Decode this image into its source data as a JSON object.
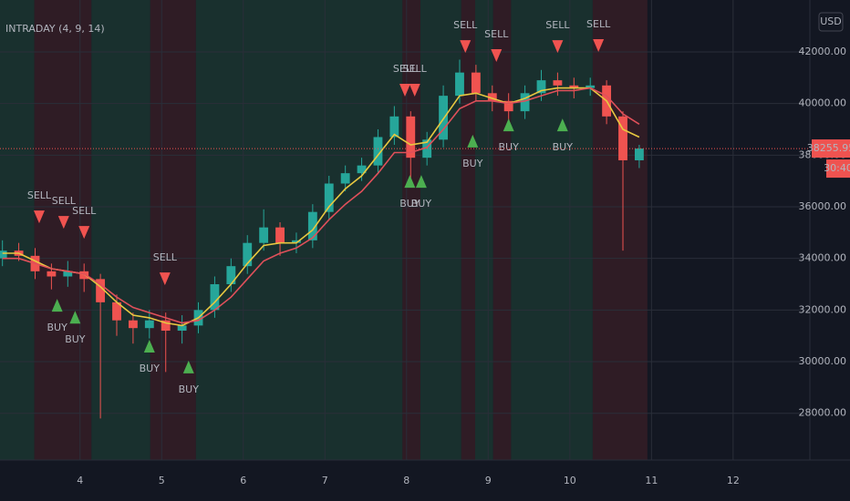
{
  "chart_data": {
    "type": "candlestick",
    "title": "INTRADAY (4, 9, 14)",
    "currency": "USD",
    "x": [
      3.05,
      3.25,
      3.45,
      3.65,
      3.85,
      4.05,
      4.25,
      4.45,
      4.65,
      4.85,
      5.05,
      5.25,
      5.45,
      5.65,
      5.85,
      6.05,
      6.25,
      6.45,
      6.65,
      6.85,
      7.05,
      7.25,
      7.45,
      7.65,
      7.85,
      8.05,
      8.25,
      8.45,
      8.65,
      8.85,
      9.05,
      9.25,
      9.45,
      9.65,
      9.85,
      10.05,
      10.25,
      10.45,
      10.65,
      10.85
    ],
    "open": [
      34000,
      34300,
      34100,
      33500,
      33300,
      33500,
      33200,
      32300,
      31600,
      31300,
      31600,
      31200,
      31400,
      32000,
      33000,
      33700,
      34600,
      35200,
      34600,
      34700,
      35800,
      36900,
      37300,
      37600,
      38700,
      39500,
      37900,
      38600,
      40300,
      41200,
      40400,
      40100,
      39700,
      40400,
      40900,
      40700,
      40600,
      40700,
      39500,
      37800
    ],
    "high": [
      34700,
      34600,
      34400,
      33800,
      33900,
      33800,
      33400,
      32600,
      31900,
      32000,
      31900,
      31800,
      32300,
      33300,
      34000,
      34900,
      35900,
      35400,
      35000,
      36100,
      37200,
      37600,
      37900,
      39000,
      39900,
      39700,
      38900,
      40700,
      41700,
      41500,
      40700,
      40400,
      40700,
      41300,
      41200,
      41000,
      41000,
      40900,
      39700,
      38400
    ],
    "low": [
      33700,
      33900,
      33200,
      32800,
      32900,
      32700,
      27800,
      31000,
      30700,
      30900,
      29600,
      30700,
      31100,
      31700,
      32700,
      33400,
      34300,
      34100,
      34200,
      34400,
      35500,
      36600,
      37000,
      37300,
      38400,
      36800,
      37600,
      38300,
      40000,
      40100,
      39700,
      39200,
      39400,
      40100,
      40300,
      40200,
      40300,
      39200,
      34300,
      37500
    ],
    "close": [
      34300,
      34100,
      33500,
      33300,
      33500,
      33200,
      32300,
      31600,
      31300,
      31600,
      31200,
      31400,
      32000,
      33000,
      33700,
      34600,
      35200,
      34600,
      34700,
      35800,
      36900,
      37300,
      37600,
      38700,
      39500,
      37900,
      38600,
      40300,
      41200,
      40400,
      40100,
      39700,
      40400,
      40900,
      40700,
      40600,
      40700,
      39500,
      37800,
      38255.95
    ],
    "up_color": "#26a69a",
    "down_color": "#ef5350",
    "lines": [
      {
        "color": "#e8c840",
        "values": [
          34200,
          34200,
          33900,
          33600,
          33500,
          33400,
          32900,
          32300,
          31800,
          31700,
          31500,
          31400,
          31700,
          32300,
          33000,
          33800,
          34500,
          34600,
          34600,
          35100,
          36000,
          36700,
          37200,
          38000,
          38800,
          38400,
          38500,
          39400,
          40300,
          40400,
          40200,
          40000,
          40200,
          40500,
          40600,
          40600,
          40600,
          40100,
          39000,
          38700
        ]
      },
      {
        "color": "#e0505a",
        "values": [
          34000,
          34000,
          33800,
          33600,
          33500,
          33400,
          33000,
          32500,
          32100,
          31900,
          31700,
          31500,
          31600,
          32000,
          32500,
          33200,
          33900,
          34200,
          34400,
          34800,
          35500,
          36100,
          36600,
          37300,
          38100,
          38100,
          38300,
          39000,
          39800,
          40100,
          40100,
          40000,
          40100,
          40300,
          40500,
          40500,
          40600,
          40300,
          39600,
          39200
        ]
      }
    ],
    "signals": [
      {
        "label": "SELL",
        "x": 3.5,
        "price": 35360
      },
      {
        "label": "SELL",
        "x": 3.8,
        "price": 35150
      },
      {
        "label": "SELL",
        "x": 4.05,
        "price": 34760
      },
      {
        "label": "SELL",
        "x": 5.04,
        "price": 32960
      },
      {
        "label": "SELL",
        "x": 7.98,
        "price": 40270
      },
      {
        "label": "SELL",
        "x": 8.1,
        "price": 40270
      },
      {
        "label": "SELL",
        "x": 8.72,
        "price": 41960
      },
      {
        "label": "SELL",
        "x": 9.1,
        "price": 41610
      },
      {
        "label": "SELL",
        "x": 9.85,
        "price": 41960
      },
      {
        "label": "SELL",
        "x": 10.35,
        "price": 42000
      },
      {
        "label": "BUY",
        "x": 3.72,
        "price": 32430
      },
      {
        "label": "BUY",
        "x": 3.94,
        "price": 31970
      },
      {
        "label": "BUY",
        "x": 4.85,
        "price": 30850
      },
      {
        "label": "BUY",
        "x": 5.33,
        "price": 30040
      },
      {
        "label": "BUY",
        "x": 8.04,
        "price": 37230
      },
      {
        "label": "BUY",
        "x": 8.18,
        "price": 37230
      },
      {
        "label": "BUY",
        "x": 8.81,
        "price": 38790
      },
      {
        "label": "BUY",
        "x": 9.25,
        "price": 39420
      },
      {
        "label": "BUY",
        "x": 9.91,
        "price": 39420
      }
    ],
    "sell_color": "#f05350",
    "buy_color": "#4caf50",
    "zones": [
      {
        "from": 3.02,
        "to": 3.44,
        "color": "#1c3a33"
      },
      {
        "from": 3.44,
        "to": 4.14,
        "color": "#3a1f27"
      },
      {
        "from": 4.14,
        "to": 4.86,
        "color": "#1c3a33"
      },
      {
        "from": 4.86,
        "to": 5.42,
        "color": "#3a1f27"
      },
      {
        "from": 5.42,
        "to": 7.95,
        "color": "#1c3a33"
      },
      {
        "from": 7.95,
        "to": 8.17,
        "color": "#3a1f27"
      },
      {
        "from": 8.17,
        "to": 8.67,
        "color": "#1c3a33"
      },
      {
        "from": 8.67,
        "to": 8.84,
        "color": "#3a1f27"
      },
      {
        "from": 8.84,
        "to": 9.06,
        "color": "#1c3a33"
      },
      {
        "from": 9.06,
        "to": 9.28,
        "color": "#3a1f27"
      },
      {
        "from": 9.28,
        "to": 10.28,
        "color": "#1c3a33"
      },
      {
        "from": 10.28,
        "to": 10.95,
        "color": "#3a1f27"
      }
    ],
    "xlim": [
      3.02,
      12.94
    ],
    "ylim": [
      26190,
      44010
    ],
    "xticks": [
      4,
      5,
      6,
      7,
      8,
      9,
      10,
      11,
      12
    ],
    "yticks": [
      {
        "value": 28000,
        "label": "28000.00"
      },
      {
        "value": 30000,
        "label": "30000.00"
      },
      {
        "value": 32000,
        "label": "32000.00"
      },
      {
        "value": 34000,
        "label": "34000.00"
      },
      {
        "value": 36000,
        "label": "36000.00"
      },
      {
        "value": 38000,
        "label": "38000.00"
      },
      {
        "value": 40000,
        "label": "40000.00"
      },
      {
        "value": 42000,
        "label": "42000.00"
      }
    ],
    "last_price": 38255.95,
    "countdown": "30:40",
    "grid": true
  }
}
